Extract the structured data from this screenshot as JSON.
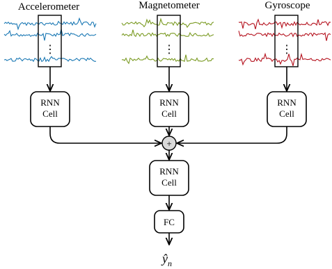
{
  "diagram": {
    "sensors": [
      {
        "name": "Accelerometer",
        "color": "#1a78b4"
      },
      {
        "name": "Magnetometer",
        "color": "#7a9a22"
      },
      {
        "name": "Gyroscope",
        "color": "#b5131f"
      }
    ],
    "rnn_line1": "RNN",
    "rnn_line2": "Cell",
    "fusion_symbol": "+",
    "fc_label": "FC",
    "output_label": "ŷ",
    "output_sub": "n",
    "ellipsis": "⋮"
  }
}
